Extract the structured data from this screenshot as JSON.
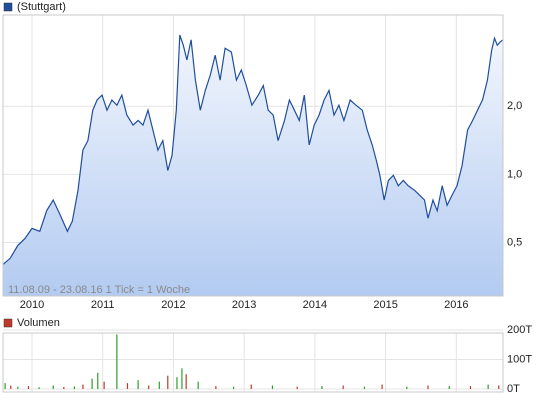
{
  "chart_data": [
    {
      "type": "area",
      "series": [
        {
          "name": "(Stuttgart)",
          "color": "#1f4e9c",
          "x": [
            2009.59,
            2009.69,
            2009.8,
            2009.9,
            2010.0,
            2010.11,
            2010.21,
            2010.3,
            2010.4,
            2010.5,
            2010.57,
            2010.65,
            2010.72,
            2010.79,
            2010.86,
            2010.92,
            2010.99,
            2011.06,
            2011.13,
            2011.2,
            2011.27,
            2011.34,
            2011.43,
            2011.5,
            2011.57,
            2011.64,
            2011.71,
            2011.78,
            2011.85,
            2011.92,
            2011.98,
            2012.04,
            2012.09,
            2012.14,
            2012.19,
            2012.25,
            2012.31,
            2012.38,
            2012.45,
            2012.52,
            2012.59,
            2012.66,
            2012.73,
            2012.82,
            2012.89,
            2012.96,
            2013.03,
            2013.11,
            2013.2,
            2013.27,
            2013.34,
            2013.41,
            2013.48,
            2013.57,
            2013.64,
            2013.71,
            2013.78,
            2013.85,
            2013.92,
            2013.99,
            2014.06,
            2014.13,
            2014.2,
            2014.27,
            2014.34,
            2014.41,
            2014.5,
            2014.58,
            2014.67,
            2014.74,
            2014.81,
            2014.87,
            2014.92,
            2014.98,
            2015.04,
            2015.11,
            2015.18,
            2015.25,
            2015.32,
            2015.41,
            2015.48,
            2015.55,
            2015.6,
            2015.67,
            2015.73,
            2015.8,
            2015.87,
            2015.94,
            2016.01,
            2016.08,
            2016.16,
            2016.23,
            2016.3,
            2016.37,
            2016.44,
            2016.5,
            2016.54,
            2016.58,
            2016.62,
            2016.66
          ],
          "values": [
            0.4,
            0.425,
            0.486,
            0.52,
            0.577,
            0.56,
            0.693,
            0.77,
            0.66,
            0.56,
            0.62,
            0.85,
            1.28,
            1.41,
            1.92,
            2.13,
            2.24,
            1.92,
            2.13,
            2.02,
            2.24,
            1.83,
            1.65,
            1.73,
            1.65,
            1.92,
            1.57,
            1.28,
            1.41,
            1.04,
            1.21,
            1.92,
            4.13,
            3.72,
            3.2,
            3.93,
            2.61,
            1.92,
            2.35,
            2.74,
            3.36,
            2.61,
            3.61,
            3.47,
            2.61,
            2.89,
            2.47,
            2.02,
            2.24,
            2.47,
            1.92,
            1.83,
            1.41,
            1.73,
            2.13,
            1.92,
            1.73,
            2.24,
            1.35,
            1.65,
            1.83,
            2.13,
            2.35,
            1.83,
            2.02,
            1.73,
            2.13,
            2.02,
            1.92,
            1.57,
            1.35,
            1.15,
            0.99,
            0.77,
            0.94,
            0.99,
            0.89,
            0.94,
            0.89,
            0.85,
            0.81,
            0.77,
            0.64,
            0.77,
            0.69,
            0.89,
            0.73,
            0.81,
            0.89,
            1.09,
            1.57,
            1.73,
            1.92,
            2.13,
            2.61,
            3.54,
            4.0,
            3.72,
            3.85,
            3.93
          ]
        }
      ],
      "xlim": [
        2009.59,
        2016.66
      ],
      "xticks": [
        2010,
        2011,
        2012,
        2013,
        2014,
        2015,
        2016
      ],
      "ylim": [
        0.29,
        5.06
      ],
      "ylog": true,
      "yticks": [
        {
          "value": 0.5,
          "label": "0,5"
        },
        {
          "value": 1,
          "label": "1,0"
        },
        {
          "value": 2,
          "label": "2,0"
        }
      ],
      "grid": true,
      "annotation": "11.08.09 - 23.08.16   1 Tick = 1 Woche"
    },
    {
      "type": "bar",
      "series": [
        {
          "name": "Volumen",
          "color": "#c0392b",
          "x": [
            2009.62,
            2009.7,
            2009.8,
            2009.95,
            2010.1,
            2010.3,
            2010.45,
            2010.6,
            2010.72,
            2010.85,
            2010.93,
            2011.02,
            2011.2,
            2011.35,
            2011.5,
            2011.65,
            2011.8,
            2011.92,
            2012.05,
            2012.12,
            2012.18,
            2012.35,
            2012.6,
            2012.85,
            2013.1,
            2013.4,
            2013.75,
            2014.1,
            2014.4,
            2014.7,
            2014.95,
            2015.3,
            2015.6,
            2015.9,
            2016.2,
            2016.45,
            2016.6
          ],
          "values": [
            20000,
            12000,
            8000,
            10000,
            6000,
            12000,
            7000,
            9000,
            15000,
            35000,
            55000,
            25000,
            185000,
            20000,
            30000,
            12000,
            25000,
            45000,
            40000,
            70000,
            50000,
            25000,
            10000,
            8000,
            15000,
            12000,
            8000,
            10000,
            12000,
            8000,
            15000,
            8000,
            12000,
            10000,
            10000,
            15000,
            12000
          ],
          "colors": [
            "#2e9e2e",
            "#c0392b",
            "#2e9e2e",
            "#c0392b",
            "#2e9e2e",
            "#2e9e2e",
            "#c0392b",
            "#2e9e2e",
            "#c0392b",
            "#2e9e2e",
            "#2e9e2e",
            "#c0392b",
            "#2e9e2e",
            "#c0392b",
            "#2e9e2e",
            "#c0392b",
            "#2e9e2e",
            "#c0392b",
            "#2e9e2e",
            "#2e9e2e",
            "#c0392b",
            "#2e9e2e",
            "#c0392b",
            "#2e9e2e",
            "#c0392b",
            "#2e9e2e",
            "#c0392b",
            "#2e9e2e",
            "#c0392b",
            "#2e9e2e",
            "#c0392b",
            "#2e9e2e",
            "#c0392b",
            "#2e9e2e",
            "#c0392b",
            "#2e9e2e",
            "#c0392b"
          ]
        }
      ],
      "xlim": [
        2009.59,
        2016.66
      ],
      "xticks": [
        2010,
        2011,
        2012,
        2013,
        2014,
        2015,
        2016
      ],
      "ylim": [
        0,
        200000
      ],
      "yticks": [
        {
          "value": 0,
          "label": "0T"
        },
        {
          "value": 100000,
          "label": "100T"
        },
        {
          "value": 200000,
          "label": "200T"
        }
      ],
      "grid": true
    }
  ]
}
